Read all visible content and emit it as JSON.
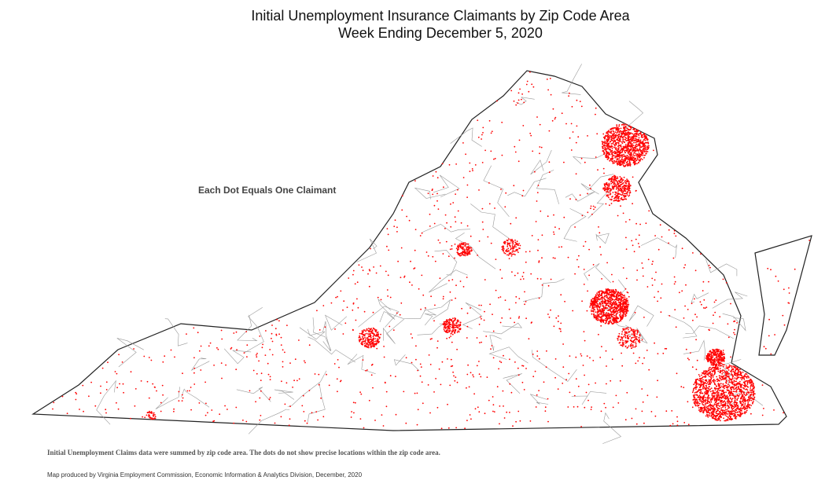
{
  "title_line1": "Initial Unemployment Insurance Claimants by Zip Code Area",
  "title_line2": "Week Ending December 5, 2020",
  "legend_text": "Each Dot Equals One Claimant",
  "note": "Initial Unemployment Claims data were summed by zip code area. The dots do not show precise locations within the zip code area.",
  "credit": "Map produced by Virginia Employment Commission, Economic Information & Analytics Division,  December, 2020",
  "colors": {
    "dot": "#ff0000",
    "border": "#222222",
    "zip_lines": "#999999"
  }
}
